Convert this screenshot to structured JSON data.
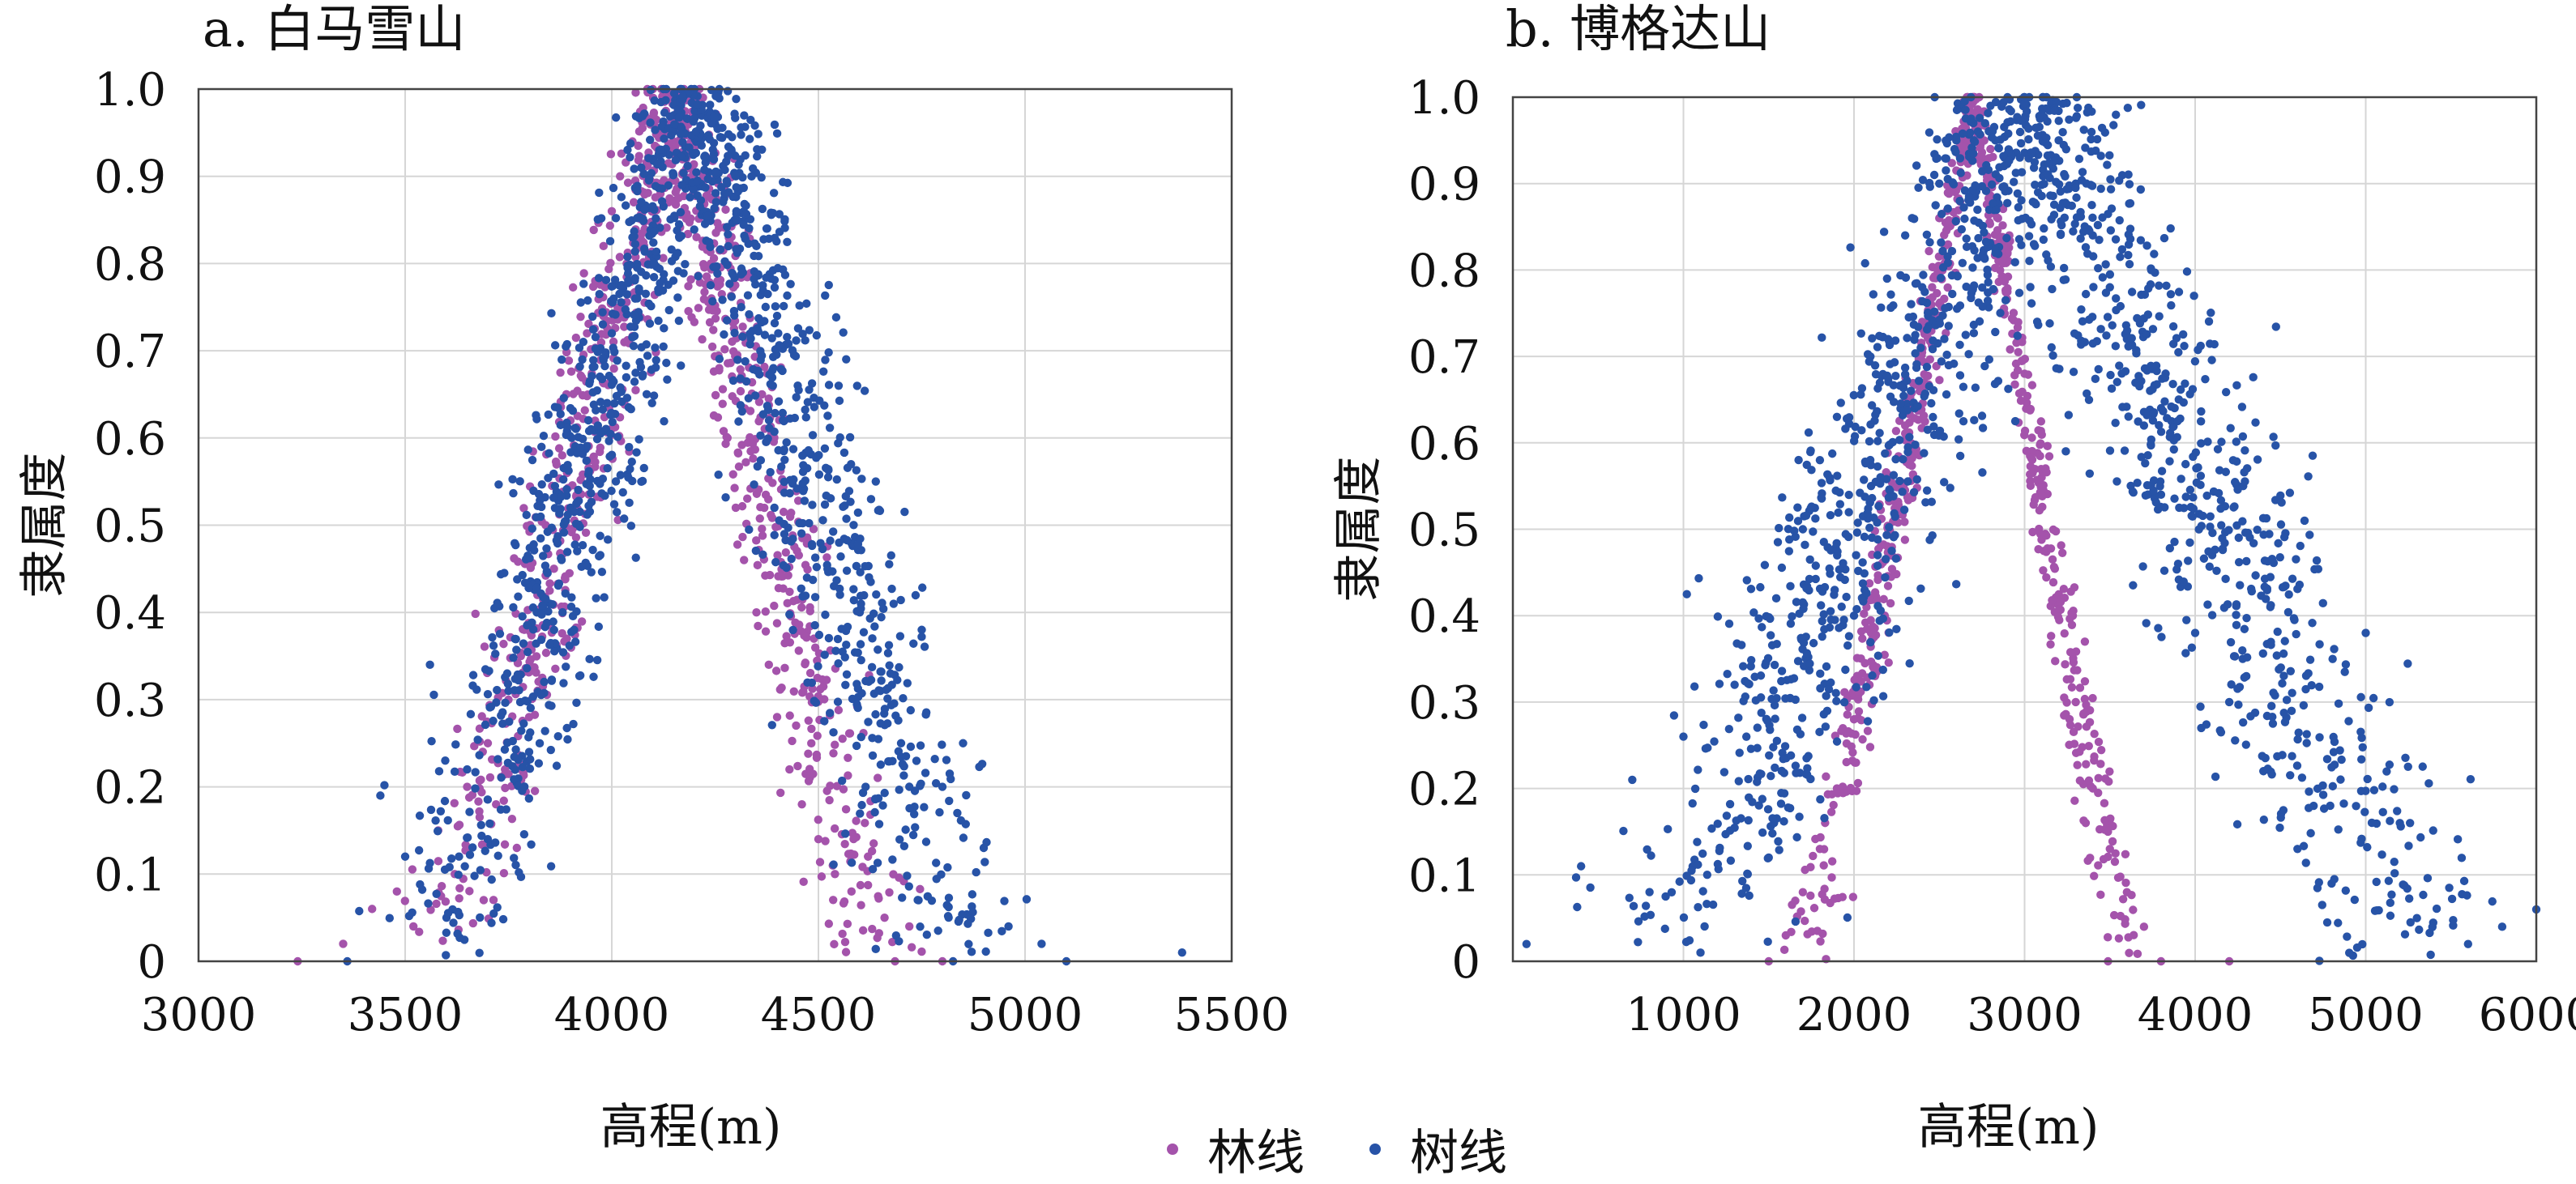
{
  "colors": {
    "forest_line": "#a453ab",
    "tree_line": "#2753a7"
  },
  "legend": {
    "forest_line": "林线",
    "tree_line": "树线"
  },
  "chart_data": [
    {
      "type": "scatter",
      "title": "a. 白马雪山",
      "xlabel": "高程(m)",
      "ylabel": "隶属度",
      "xlim": [
        3000,
        5500
      ],
      "ylim": [
        0,
        1
      ],
      "xticks": [
        3000,
        3500,
        4000,
        4500,
        5000,
        5500
      ],
      "yticks": [
        0,
        0.1,
        0.2,
        0.3,
        0.4,
        0.5,
        0.6,
        0.7,
        0.8,
        0.9,
        1.0
      ],
      "ytick_labels": [
        "0",
        "0.1",
        "0.2",
        "0.3",
        "0.4",
        "0.5",
        "0.6",
        "0.7",
        "0.8",
        "0.9",
        "1.0"
      ],
      "grid": true,
      "series": [
        {
          "name": "林线",
          "color": "#a453ab",
          "peak": 4150,
          "points": [
            [
              3240,
              0.0
            ],
            [
              3350,
              0.02
            ],
            [
              3420,
              0.06
            ],
            [
              3480,
              0.08
            ],
            [
              3520,
              0.04
            ],
            [
              3580,
              0.15
            ],
            [
              3620,
              0.1
            ],
            [
              3650,
              0.2
            ],
            [
              3700,
              0.25
            ],
            [
              3720,
              0.18
            ],
            [
              3750,
              0.3
            ],
            [
              3780,
              0.35
            ],
            [
              3800,
              0.28
            ],
            [
              3820,
              0.42
            ],
            [
              3840,
              0.5
            ],
            [
              3860,
              0.45
            ],
            [
              3880,
              0.58
            ],
            [
              3900,
              0.62
            ],
            [
              3920,
              0.68
            ],
            [
              3940,
              0.72
            ],
            [
              3960,
              0.78
            ],
            [
              3980,
              0.82
            ],
            [
              4000,
              0.86
            ],
            [
              4020,
              0.9
            ],
            [
              4050,
              0.94
            ],
            [
              4080,
              0.97
            ],
            [
              4100,
              0.99
            ],
            [
              4120,
              1.0
            ],
            [
              4140,
              0.99
            ],
            [
              4160,
              0.96
            ],
            [
              4180,
              0.92
            ],
            [
              4200,
              0.88
            ],
            [
              4220,
              0.82
            ],
            [
              4240,
              0.75
            ],
            [
              4260,
              0.68
            ],
            [
              4280,
              0.6
            ],
            [
              4300,
              0.52
            ],
            [
              4320,
              0.46
            ],
            [
              4350,
              0.4
            ],
            [
              4380,
              0.34
            ],
            [
              4400,
              0.28
            ],
            [
              4430,
              0.22
            ],
            [
              4460,
              0.18
            ],
            [
              4500,
              0.14
            ],
            [
              4540,
              0.1
            ],
            [
              4580,
              0.08
            ],
            [
              4620,
              0.12
            ],
            [
              4660,
              0.05
            ],
            [
              4720,
              0.04
            ],
            [
              4800,
              0.0
            ]
          ]
        },
        {
          "name": "树线",
          "color": "#2753a7",
          "peak": 4200,
          "points": [
            [
              3360,
              0.0
            ],
            [
              3440,
              0.19
            ],
            [
              3500,
              0.12
            ],
            [
              3560,
              0.34
            ],
            [
              3600,
              0.05
            ],
            [
              3650,
              0.22
            ],
            [
              3700,
              0.14
            ],
            [
              3750,
              0.31
            ],
            [
              3800,
              0.24
            ],
            [
              3850,
              0.41
            ],
            [
              3900,
              0.52
            ],
            [
              3950,
              0.61
            ],
            [
              4000,
              0.72
            ],
            [
              4050,
              0.83
            ],
            [
              4100,
              0.92
            ],
            [
              4150,
              0.97
            ],
            [
              4200,
              1.0
            ],
            [
              4250,
              0.96
            ],
            [
              4300,
              0.9
            ],
            [
              4350,
              0.82
            ],
            [
              4400,
              0.74
            ],
            [
              4450,
              0.66
            ],
            [
              4500,
              0.58
            ],
            [
              4550,
              0.48
            ],
            [
              4600,
              0.4
            ],
            [
              4650,
              0.31
            ],
            [
              4700,
              0.25
            ],
            [
              4750,
              0.38
            ],
            [
              4800,
              0.2
            ],
            [
              4850,
              0.25
            ],
            [
              4900,
              0.13
            ],
            [
              4960,
              0.04
            ],
            [
              5040,
              0.02
            ],
            [
              5100,
              0.0
            ],
            [
              5380,
              0.01
            ]
          ]
        }
      ]
    },
    {
      "type": "scatter",
      "title": "b. 博格达山",
      "xlabel": "高程(m)",
      "ylabel": "隶属度",
      "xlim": [
        0,
        6000
      ],
      "ylim": [
        0,
        1
      ],
      "xticks": [
        1000,
        2000,
        3000,
        4000,
        5000,
        6000
      ],
      "yticks": [
        0,
        0.1,
        0.2,
        0.3,
        0.4,
        0.5,
        0.6,
        0.7,
        0.8,
        0.9,
        1.0
      ],
      "ytick_labels": [
        "0",
        "0.1",
        "0.2",
        "0.3",
        "0.4",
        "0.5",
        "0.6",
        "0.7",
        "0.8",
        "0.9",
        "1.0"
      ],
      "grid": true,
      "series": [
        {
          "name": "林线",
          "color": "#a453ab",
          "peak": 2700,
          "points": [
            [
              1500,
              0.0
            ],
            [
              1600,
              0.03
            ],
            [
              1700,
              0.08
            ],
            [
              1800,
              0.13
            ],
            [
              1900,
              0.2
            ],
            [
              2000,
              0.28
            ],
            [
              2100,
              0.38
            ],
            [
              2200,
              0.5
            ],
            [
              2300,
              0.62
            ],
            [
              2400,
              0.74
            ],
            [
              2500,
              0.86
            ],
            [
              2600,
              0.95
            ],
            [
              2700,
              1.0
            ],
            [
              2800,
              0.94
            ],
            [
              2900,
              0.82
            ],
            [
              3000,
              0.68
            ],
            [
              3100,
              0.56
            ],
            [
              3200,
              0.42
            ],
            [
              3300,
              0.3
            ],
            [
              3400,
              0.2
            ],
            [
              3500,
              0.13
            ],
            [
              3600,
              0.08
            ],
            [
              3700,
              0.04
            ],
            [
              3800,
              0.0
            ],
            [
              4200,
              0.0
            ]
          ]
        },
        {
          "name": "树线",
          "color": "#2753a7",
          "peak": 3000,
          "points": [
            [
              80,
              0.02
            ],
            [
              400,
              0.11
            ],
            [
              700,
              0.21
            ],
            [
              1000,
              0.26
            ],
            [
              1100,
              0.01
            ],
            [
              1300,
              0.32
            ],
            [
              1500,
              0.12
            ],
            [
              1700,
              0.5
            ],
            [
              1800,
              0.58
            ],
            [
              1900,
              0.63
            ],
            [
              2000,
              0.4
            ],
            [
              2100,
              0.55
            ],
            [
              2200,
              0.72
            ],
            [
              2300,
              0.84
            ],
            [
              2400,
              0.78
            ],
            [
              2500,
              0.9
            ],
            [
              2600,
              0.95
            ],
            [
              2700,
              0.97
            ],
            [
              2800,
              0.99
            ],
            [
              2900,
              1.0
            ],
            [
              3000,
              1.0
            ],
            [
              3100,
              0.98
            ],
            [
              3200,
              0.95
            ],
            [
              3300,
              0.9
            ],
            [
              3400,
              0.84
            ],
            [
              3500,
              0.78
            ],
            [
              3600,
              0.72
            ],
            [
              3700,
              0.62
            ],
            [
              3800,
              0.54
            ],
            [
              3900,
              0.46
            ],
            [
              4000,
              0.38
            ],
            [
              4100,
              0.47
            ],
            [
              4200,
              0.3
            ],
            [
              4300,
              0.33
            ],
            [
              4400,
              0.22
            ],
            [
              4600,
              0.13
            ],
            [
              4800,
              0.09
            ],
            [
              5000,
              0.38
            ],
            [
              5200,
              0.16
            ],
            [
              5300,
              0.05
            ],
            [
              5600,
              0.02
            ],
            [
              5800,
              0.04
            ],
            [
              6000,
              0.06
            ]
          ]
        }
      ]
    }
  ]
}
